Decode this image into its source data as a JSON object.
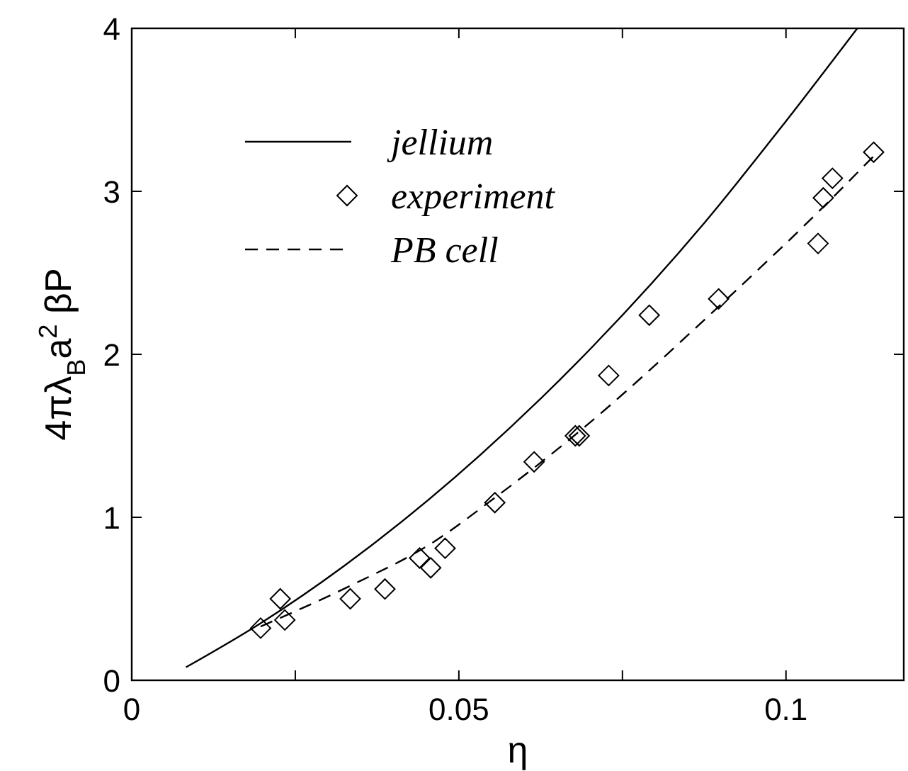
{
  "chart_data": {
    "type": "line",
    "xlabel": "η",
    "ylabel": "4πλ$_{B}$a$^{2}$ βP",
    "xlim": [
      0,
      0.118
    ],
    "ylim": [
      0,
      4
    ],
    "xticks": [
      0,
      {
        "value": 0.025,
        "label": null
      },
      0.05,
      {
        "value": 0.075,
        "label": null
      },
      0.1
    ],
    "yticks": [
      0,
      1,
      2,
      3,
      4
    ],
    "grid": false,
    "legend": "top left",
    "series": [
      {
        "name": "jellium",
        "color": "#000000",
        "line_style": "solid",
        "marker": "none",
        "x": [
          0.0083,
          0.0197,
          0.0324,
          0.0532,
          0.0705,
          0.0876,
          0.0996,
          0.1109
        ],
        "values": [
          0.08,
          0.35,
          0.7,
          1.38,
          2.05,
          2.81,
          3.41,
          4.0
        ]
      },
      {
        "name": "experiment",
        "type": "scatter",
        "color": "#000000",
        "marker": "diamond",
        "x": [
          0.0197,
          0.0227,
          0.0234,
          0.0334,
          0.0387,
          0.044,
          0.0457,
          0.0479,
          0.0555,
          0.0615,
          0.0678,
          0.0684,
          0.0729,
          0.0791,
          0.0897,
          0.1049,
          0.1057,
          0.1071,
          0.1134
        ],
        "values": [
          0.32,
          0.5,
          0.37,
          0.5,
          0.56,
          0.75,
          0.69,
          0.81,
          1.09,
          1.34,
          1.5,
          1.5,
          1.87,
          2.24,
          2.34,
          2.68,
          2.96,
          3.08,
          3.24
        ]
      },
      {
        "name": "PB cell",
        "color": "#000000",
        "line_style": "dashed",
        "marker": "none",
        "x": [
          0.0197,
          0.0334,
          0.0458,
          0.0555,
          0.0682,
          0.0899,
          0.1056,
          0.1135
        ],
        "values": [
          0.33,
          0.58,
          0.84,
          1.12,
          1.52,
          2.3,
          2.9,
          3.22
        ]
      }
    ]
  }
}
